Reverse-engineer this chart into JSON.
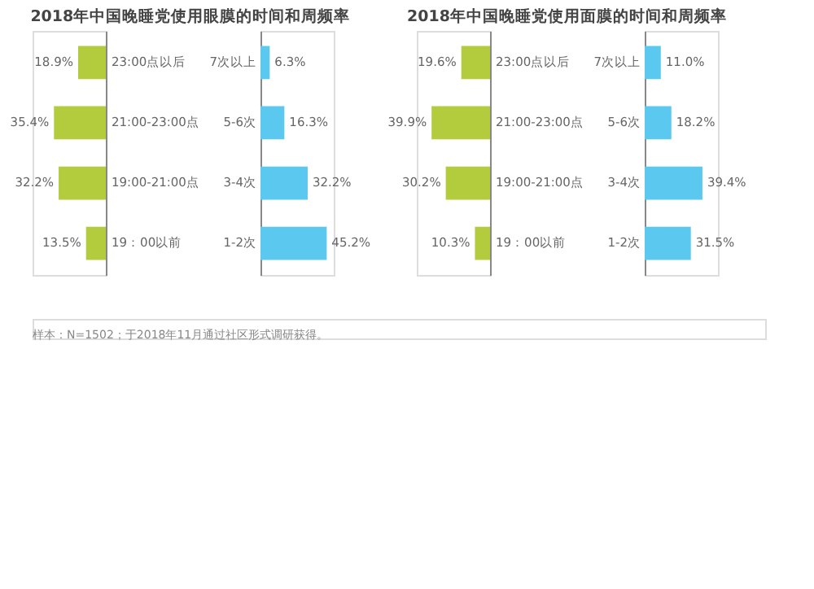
{
  "chart_data": [
    {
      "type": "bar",
      "orientation": "horizontal",
      "title": "2018年中国晚睡党使用眼膜的时间和周频率",
      "categories": [
        "23:00点以后",
        "21:00-23:00点",
        "19:00-21:00点",
        "19：00以前"
      ],
      "xlim": [
        50,
        0
      ],
      "tick_labels": "y",
      "series": [
        {
          "color": "#b2cc3e",
          "values": [
            18.9,
            35.4,
            32.2,
            13.5
          ],
          "value_labels": [
            "18.9%",
            "35.4%",
            "32.2%",
            "13.5%"
          ]
        }
      ],
      "annotations": [
        "样本：N=1502；于2018年11月通过社区形式调研获得。"
      ]
    },
    {
      "type": "bar",
      "orientation": "horizontal",
      "categories": [
        "7次以上",
        "5-6次",
        "3-4次",
        "1-2次"
      ],
      "xlim": [
        0,
        50
      ],
      "tick_labels": "y",
      "series": [
        {
          "color": "#5ac8ef",
          "values": [
            6.3,
            16.3,
            32.2,
            45.2
          ],
          "value_labels": [
            "6.3%",
            "16.3%",
            "32.2%",
            "45.2%"
          ]
        }
      ]
    },
    {
      "type": "bar",
      "orientation": "horizontal",
      "title": "2018年中国晚睡党使用面膜的时间和周频率",
      "categories": [
        "23:00点以后",
        "21:00-23:00点",
        "19:00-21:00点",
        "19：00以前"
      ],
      "xlim": [
        50,
        0
      ],
      "tick_labels": "y",
      "series": [
        {
          "color": "#b2cc3e",
          "values": [
            19.6,
            39.9,
            30.2,
            10.3
          ],
          "value_labels": [
            "19.6%",
            "39.9%",
            "30.2%",
            "10.3%"
          ]
        }
      ]
    },
    {
      "type": "bar",
      "orientation": "horizontal",
      "categories": [
        "7次以上",
        "5-6次",
        "3-4次",
        "1-2次"
      ],
      "xlim": [
        0,
        50
      ],
      "tick_labels": "y",
      "series": [
        {
          "color": "#5ac8ef",
          "values": [
            11.0,
            18.2,
            39.4,
            31.5
          ],
          "value_labels": [
            "11.0%",
            "18.2%",
            "39.4%",
            "31.5%"
          ]
        }
      ]
    }
  ]
}
